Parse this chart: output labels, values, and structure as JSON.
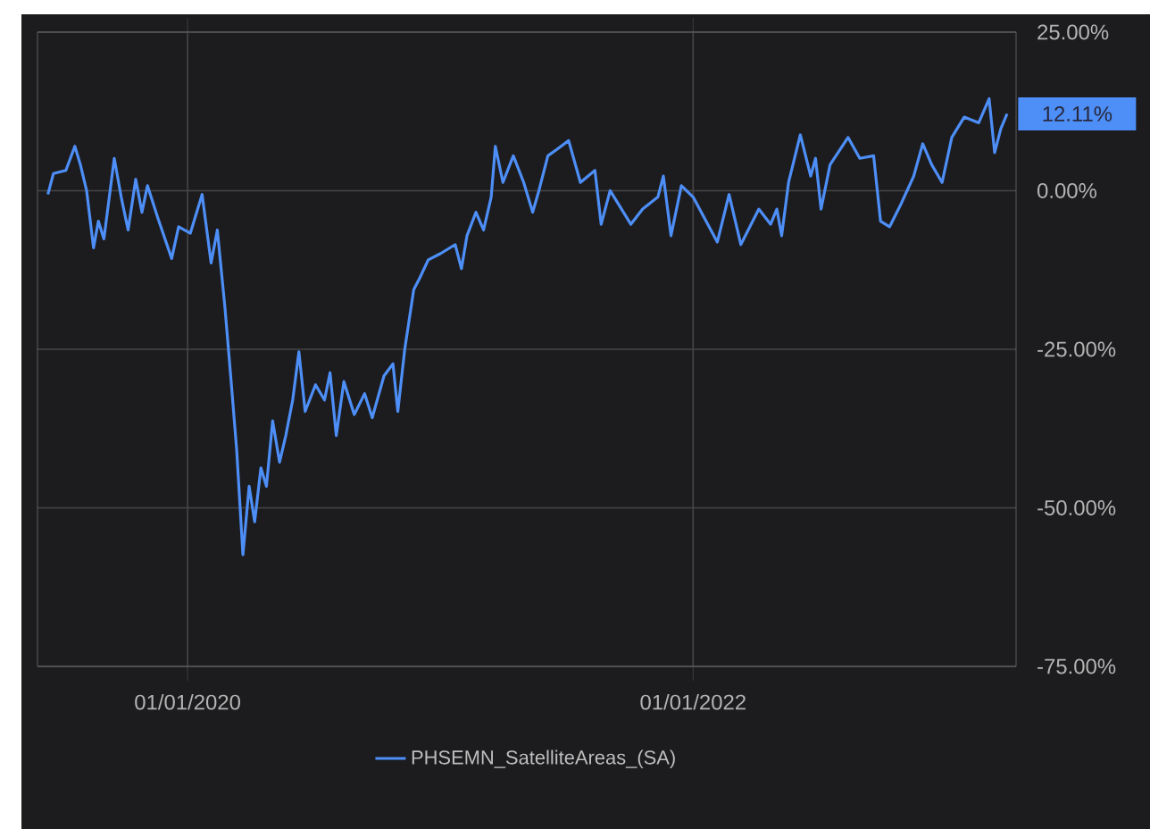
{
  "chart_data": {
    "type": "line",
    "series": [
      {
        "name": "PHSEMN_SatelliteAreas_(SA)",
        "color": "#4d8ef7",
        "x": [
          "2019-06-13",
          "2019-06-21",
          "2019-07-09",
          "2019-07-22",
          "2019-07-30",
          "2019-08-08",
          "2019-08-18",
          "2019-08-25",
          "2019-09-02",
          "2019-09-17",
          "2019-09-27",
          "2019-10-07",
          "2019-10-18",
          "2019-10-27",
          "2019-11-04",
          "2019-11-19",
          "2019-12-09",
          "2019-12-19",
          "2020-01-05",
          "2020-01-22",
          "2020-02-04",
          "2020-02-13",
          "2020-02-24",
          "2020-03-04",
          "2020-03-12",
          "2020-03-21",
          "2020-03-30",
          "2020-04-07",
          "2020-04-16",
          "2020-04-24",
          "2020-05-03",
          "2020-05-13",
          "2020-05-22",
          "2020-06-01",
          "2020-06-10",
          "2020-06-19",
          "2020-07-04",
          "2020-07-17",
          "2020-07-25",
          "2020-08-03",
          "2020-08-14",
          "2020-08-29",
          "2020-09-13",
          "2020-09-24",
          "2020-10-11",
          "2020-10-24",
          "2020-10-31",
          "2020-11-10",
          "2020-11-23",
          "2020-12-02",
          "2020-12-14",
          "2021-01-01",
          "2021-01-22",
          "2021-01-31",
          "2021-02-08",
          "2021-02-21",
          "2021-03-04",
          "2021-03-15",
          "2021-03-21",
          "2021-04-01",
          "2021-04-16",
          "2021-05-01",
          "2021-05-14",
          "2021-05-23",
          "2021-06-05",
          "2021-06-18",
          "2021-07-05",
          "2021-07-22",
          "2021-08-12",
          "2021-08-21",
          "2021-09-03",
          "2021-10-03",
          "2021-10-20",
          "2021-11-11",
          "2021-11-19",
          "2021-11-30",
          "2021-12-15",
          "2022-01-01",
          "2022-02-05",
          "2022-02-22",
          "2022-03-11",
          "2022-04-06",
          "2022-04-23",
          "2022-05-02",
          "2022-05-09",
          "2022-05-19",
          "2022-06-05",
          "2022-06-20",
          "2022-06-27",
          "2022-07-05",
          "2022-07-18",
          "2022-08-13",
          "2022-08-30",
          "2022-09-19",
          "2022-09-29",
          "2022-10-12",
          "2022-10-29",
          "2022-11-16",
          "2022-11-29",
          "2022-12-12",
          "2022-12-27",
          "2023-01-10",
          "2023-01-28",
          "2023-02-18",
          "2023-03-05",
          "2023-03-13",
          "2023-03-22",
          "2023-03-31"
        ],
        "values": [
          -0.6,
          2.7,
          3.2,
          7,
          4.1,
          0,
          -9,
          -4.8,
          -7.6,
          5.1,
          -1,
          -6.2,
          1.8,
          -3.4,
          0.8,
          -4.3,
          -10.7,
          -5.7,
          -6.7,
          -0.6,
          -11.4,
          -6.2,
          -18.4,
          -30.1,
          -40.9,
          -57.4,
          -46.6,
          -52.2,
          -43.7,
          -46.6,
          -36.3,
          -42.8,
          -38.6,
          -33,
          -25.4,
          -34.8,
          -30.6,
          -33,
          -28.7,
          -38.6,
          -30.1,
          -35.3,
          -32,
          -35.8,
          -29.2,
          -27.3,
          -34.8,
          -25,
          -15.6,
          -13.7,
          -10.9,
          -9.9,
          -8.5,
          -12.3,
          -7.1,
          -3.4,
          -6.2,
          -1,
          7,
          1.3,
          5.5,
          1.3,
          -3.4,
          0,
          5.5,
          6.5,
          7.9,
          1.3,
          3.2,
          -5.3,
          0,
          -5.3,
          -2.9,
          -1,
          2.3,
          -7.1,
          0.8,
          -1,
          -8.1,
          -0.6,
          -8.5,
          -2.9,
          -5.3,
          -2.9,
          -7.1,
          1.3,
          8.8,
          2.3,
          5.1,
          -2.9,
          4.1,
          8.4,
          5.1,
          5.5,
          -4.8,
          -5.7,
          -2,
          2.3,
          7.4,
          4.1,
          1.3,
          8.4,
          11.6,
          10.7,
          14.5,
          6,
          9.8,
          12.11
        ]
      }
    ],
    "xlim": [
      "2019-05-29",
      "2023-04-13"
    ],
    "xticks": [
      {
        "value": "2020-01-01",
        "label": "01/01/2020"
      },
      {
        "value": "2022-01-01",
        "label": "01/01/2022"
      }
    ],
    "ylim": [
      -75,
      25
    ],
    "yticks": [
      {
        "value": -75,
        "label": "-75.00%"
      },
      {
        "value": -50,
        "label": "-50.00%"
      },
      {
        "value": -25,
        "label": "-25.00%"
      },
      {
        "value": 0,
        "label": "0.00%"
      },
      {
        "value": 25,
        "label": "25.00%"
      }
    ],
    "annotations": [
      {
        "text": "12.11%",
        "x": "2023-03-31",
        "y": 12.11
      }
    ],
    "grid": true,
    "legend": "bottom"
  }
}
